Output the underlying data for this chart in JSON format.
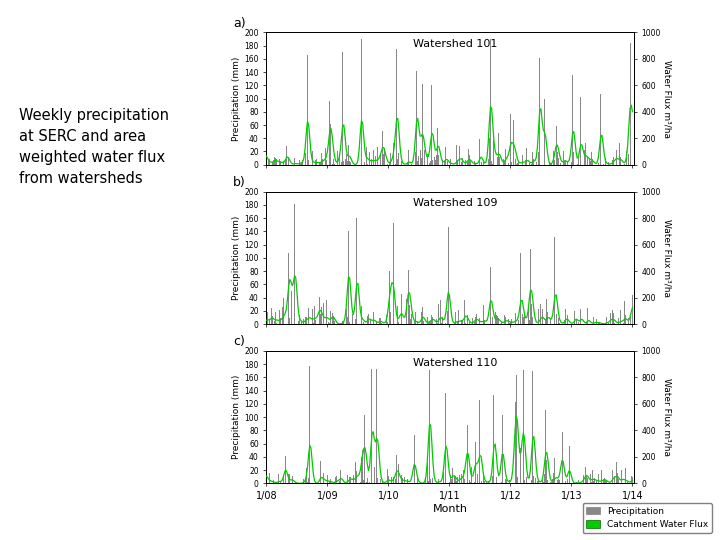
{
  "title_text": "Weekly precipitation\nat SERC and area\nweighted water flux\nfrom watersheds",
  "subplots": [
    {
      "label": "a)",
      "watershed": "Watershed 101"
    },
    {
      "label": "b)",
      "watershed": "Watershed 109"
    },
    {
      "label": "c)",
      "watershed": "Watershed 110"
    }
  ],
  "x_tick_labels": [
    "1/08",
    "1/09",
    "1/10",
    "1/11",
    "1/12",
    "1/13",
    "1/14"
  ],
  "xlabel": "Month",
  "ylabel_left": "Precipitation (mm)",
  "ylabel_right": "Water Flux m³/ha",
  "ylim_left": [
    0,
    200
  ],
  "ylim_right": [
    0,
    1000
  ],
  "yticks_left": [
    0,
    20,
    40,
    60,
    80,
    100,
    120,
    140,
    160,
    180,
    200
  ],
  "yticks_right": [
    0,
    200,
    400,
    600,
    800,
    1000
  ],
  "precip_color": "#888888",
  "flux_color": "#00cc00",
  "legend_labels": [
    "Precipitation",
    "Catchment Water Flux"
  ],
  "legend_colors": [
    "#888888",
    "#00cc00"
  ],
  "background_color": "#ffffff",
  "n_weeks": 313
}
